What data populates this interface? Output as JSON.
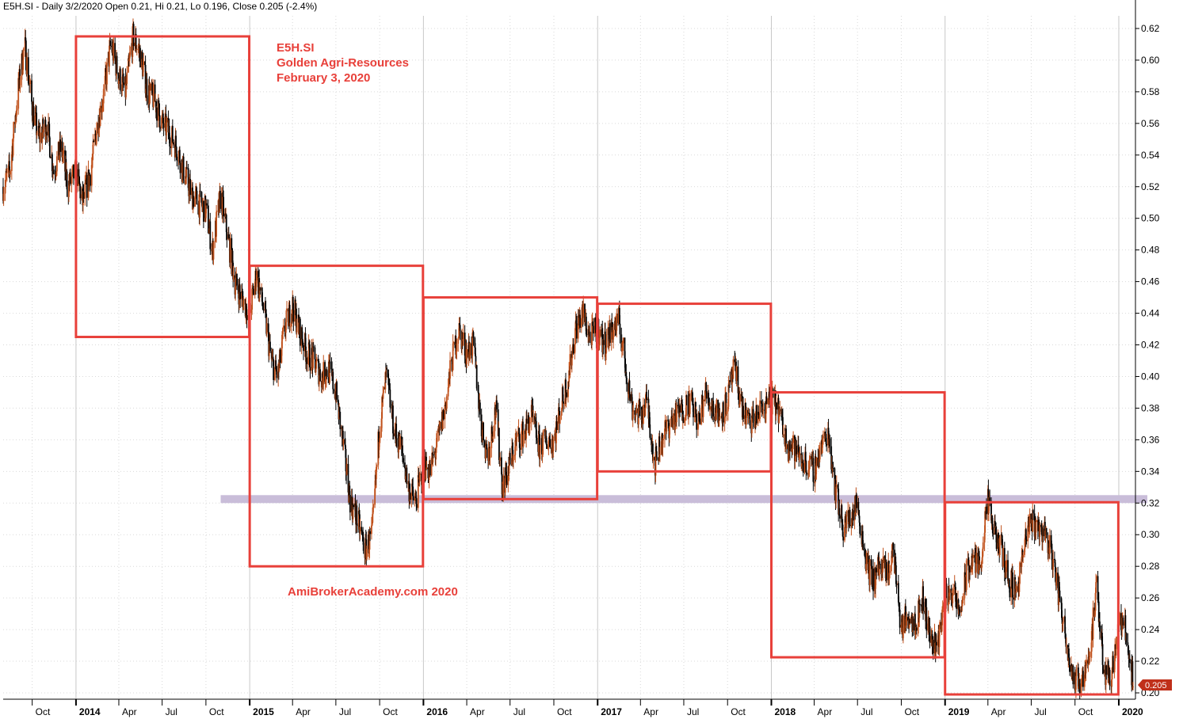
{
  "header": {
    "text": "E5H.SI - Daily 3/2/2020 Open 0.21, Hi 0.21, Lo 0.196, Close 0.205 (-2.4%)"
  },
  "annotations": {
    "ticker": "E5H.SI",
    "company": "Golden Agri-Resources",
    "date": "February 3, 2020",
    "watermark": "AmiBrokerAcademy.com   2020"
  },
  "last_price_label": "0.205",
  "colors": {
    "box": "#e8403a",
    "support_band": "#c9bdd9",
    "candle_dark": "#000000",
    "candle_light": "#c0501a",
    "price_tag": "#c0301a",
    "grid": "#d9d9d9"
  },
  "chart_data": {
    "type": "candlestick",
    "title": "",
    "xlabel": "",
    "ylabel": "",
    "ylim": [
      0.196,
      0.628
    ],
    "y_ticks": [
      0.2,
      0.22,
      0.24,
      0.26,
      0.28,
      0.3,
      0.32,
      0.34,
      0.36,
      0.38,
      0.4,
      0.42,
      0.44,
      0.46,
      0.48,
      0.5,
      0.52,
      0.54,
      0.56,
      0.58,
      0.6,
      0.62
    ],
    "x_ticks": [
      {
        "label": "Oct",
        "date": "2013-10-01",
        "bold": false
      },
      {
        "label": "2014",
        "date": "2014-01-01",
        "bold": true
      },
      {
        "label": "Apr",
        "date": "2014-04-01",
        "bold": false
      },
      {
        "label": "Jul",
        "date": "2014-07-01",
        "bold": false
      },
      {
        "label": "Oct",
        "date": "2014-10-01",
        "bold": false
      },
      {
        "label": "2015",
        "date": "2015-01-01",
        "bold": true
      },
      {
        "label": "Apr",
        "date": "2015-04-01",
        "bold": false
      },
      {
        "label": "Jul",
        "date": "2015-07-01",
        "bold": false
      },
      {
        "label": "Oct",
        "date": "2015-10-01",
        "bold": false
      },
      {
        "label": "2016",
        "date": "2016-01-01",
        "bold": true
      },
      {
        "label": "Apr",
        "date": "2016-04-01",
        "bold": false
      },
      {
        "label": "Jul",
        "date": "2016-07-01",
        "bold": false
      },
      {
        "label": "Oct",
        "date": "2016-10-01",
        "bold": false
      },
      {
        "label": "2017",
        "date": "2017-01-01",
        "bold": true
      },
      {
        "label": "Apr",
        "date": "2017-04-01",
        "bold": false
      },
      {
        "label": "Jul",
        "date": "2017-07-01",
        "bold": false
      },
      {
        "label": "Oct",
        "date": "2017-10-01",
        "bold": false
      },
      {
        "label": "2018",
        "date": "2018-01-01",
        "bold": true
      },
      {
        "label": "Apr",
        "date": "2018-04-01",
        "bold": false
      },
      {
        "label": "Jul",
        "date": "2018-07-01",
        "bold": false
      },
      {
        "label": "Oct",
        "date": "2018-10-01",
        "bold": false
      },
      {
        "label": "2019",
        "date": "2019-01-01",
        "bold": true
      },
      {
        "label": "Apr",
        "date": "2019-04-01",
        "bold": false
      },
      {
        "label": "Jul",
        "date": "2019-07-01",
        "bold": false
      },
      {
        "label": "Oct",
        "date": "2019-10-01",
        "bold": false
      },
      {
        "label": "2020",
        "date": "2020-01-01",
        "bold": true
      }
    ],
    "series": [
      {
        "type": "close",
        "points": [
          [
            "2013-08-01",
            0.52
          ],
          [
            "2013-08-15",
            0.53
          ],
          [
            "2013-09-01",
            0.58
          ],
          [
            "2013-09-15",
            0.61
          ],
          [
            "2013-10-01",
            0.57
          ],
          [
            "2013-10-15",
            0.55
          ],
          [
            "2013-11-01",
            0.56
          ],
          [
            "2013-11-15",
            0.53
          ],
          [
            "2013-12-01",
            0.545
          ],
          [
            "2013-12-15",
            0.52
          ],
          [
            "2014-01-01",
            0.53
          ],
          [
            "2014-01-15",
            0.51
          ],
          [
            "2014-02-01",
            0.53
          ],
          [
            "2014-02-15",
            0.56
          ],
          [
            "2014-03-01",
            0.58
          ],
          [
            "2014-03-15",
            0.61
          ],
          [
            "2014-04-01",
            0.59
          ],
          [
            "2014-04-15",
            0.58
          ],
          [
            "2014-05-01",
            0.615
          ],
          [
            "2014-05-15",
            0.605
          ],
          [
            "2014-06-01",
            0.58
          ],
          [
            "2014-06-15",
            0.575
          ],
          [
            "2014-07-01",
            0.56
          ],
          [
            "2014-07-15",
            0.555
          ],
          [
            "2014-08-01",
            0.545
          ],
          [
            "2014-08-15",
            0.53
          ],
          [
            "2014-09-01",
            0.515
          ],
          [
            "2014-09-15",
            0.51
          ],
          [
            "2014-10-01",
            0.505
          ],
          [
            "2014-10-15",
            0.48
          ],
          [
            "2014-11-01",
            0.515
          ],
          [
            "2014-11-15",
            0.49
          ],
          [
            "2014-12-01",
            0.46
          ],
          [
            "2014-12-15",
            0.45
          ],
          [
            "2015-01-01",
            0.44
          ],
          [
            "2015-01-15",
            0.465
          ],
          [
            "2015-02-01",
            0.44
          ],
          [
            "2015-02-15",
            0.41
          ],
          [
            "2015-03-01",
            0.4
          ],
          [
            "2015-03-15",
            0.43
          ],
          [
            "2015-04-01",
            0.445
          ],
          [
            "2015-04-15",
            0.43
          ],
          [
            "2015-05-01",
            0.415
          ],
          [
            "2015-05-15",
            0.41
          ],
          [
            "2015-06-01",
            0.4
          ],
          [
            "2015-06-15",
            0.405
          ],
          [
            "2015-07-01",
            0.39
          ],
          [
            "2015-07-15",
            0.36
          ],
          [
            "2015-08-01",
            0.32
          ],
          [
            "2015-08-15",
            0.31
          ],
          [
            "2015-09-01",
            0.29
          ],
          [
            "2015-09-15",
            0.3
          ],
          [
            "2015-10-01",
            0.37
          ],
          [
            "2015-10-15",
            0.4
          ],
          [
            "2015-11-01",
            0.365
          ],
          [
            "2015-11-15",
            0.355
          ],
          [
            "2015-12-01",
            0.33
          ],
          [
            "2015-12-15",
            0.32
          ],
          [
            "2016-01-01",
            0.345
          ],
          [
            "2016-01-15",
            0.34
          ],
          [
            "2016-02-01",
            0.36
          ],
          [
            "2016-02-15",
            0.38
          ],
          [
            "2016-03-01",
            0.41
          ],
          [
            "2016-03-15",
            0.43
          ],
          [
            "2016-04-01",
            0.415
          ],
          [
            "2016-04-15",
            0.42
          ],
          [
            "2016-05-01",
            0.37
          ],
          [
            "2016-05-15",
            0.35
          ],
          [
            "2016-06-01",
            0.38
          ],
          [
            "2016-06-15",
            0.33
          ],
          [
            "2016-07-01",
            0.345
          ],
          [
            "2016-07-15",
            0.36
          ],
          [
            "2016-08-01",
            0.365
          ],
          [
            "2016-08-15",
            0.375
          ],
          [
            "2016-09-01",
            0.355
          ],
          [
            "2016-09-15",
            0.36
          ],
          [
            "2016-10-01",
            0.36
          ],
          [
            "2016-10-15",
            0.38
          ],
          [
            "2016-11-01",
            0.4
          ],
          [
            "2016-11-15",
            0.43
          ],
          [
            "2016-12-01",
            0.44
          ],
          [
            "2016-12-15",
            0.425
          ],
          [
            "2017-01-01",
            0.43
          ],
          [
            "2017-01-15",
            0.42
          ],
          [
            "2017-02-01",
            0.43
          ],
          [
            "2017-02-15",
            0.435
          ],
          [
            "2017-03-01",
            0.405
          ],
          [
            "2017-03-15",
            0.38
          ],
          [
            "2017-04-01",
            0.375
          ],
          [
            "2017-04-15",
            0.385
          ],
          [
            "2017-05-01",
            0.345
          ],
          [
            "2017-05-15",
            0.36
          ],
          [
            "2017-06-01",
            0.37
          ],
          [
            "2017-06-15",
            0.375
          ],
          [
            "2017-07-01",
            0.38
          ],
          [
            "2017-07-15",
            0.385
          ],
          [
            "2017-08-01",
            0.37
          ],
          [
            "2017-08-15",
            0.39
          ],
          [
            "2017-09-01",
            0.38
          ],
          [
            "2017-09-15",
            0.375
          ],
          [
            "2017-10-01",
            0.385
          ],
          [
            "2017-10-15",
            0.405
          ],
          [
            "2017-11-01",
            0.38
          ],
          [
            "2017-11-15",
            0.37
          ],
          [
            "2017-12-01",
            0.375
          ],
          [
            "2017-12-15",
            0.38
          ],
          [
            "2018-01-01",
            0.385
          ],
          [
            "2018-01-15",
            0.38
          ],
          [
            "2018-02-01",
            0.36
          ],
          [
            "2018-02-15",
            0.355
          ],
          [
            "2018-03-01",
            0.35
          ],
          [
            "2018-03-15",
            0.345
          ],
          [
            "2018-04-01",
            0.34
          ],
          [
            "2018-04-15",
            0.355
          ],
          [
            "2018-05-01",
            0.365
          ],
          [
            "2018-05-15",
            0.33
          ],
          [
            "2018-06-01",
            0.305
          ],
          [
            "2018-06-15",
            0.31
          ],
          [
            "2018-07-01",
            0.32
          ],
          [
            "2018-07-15",
            0.29
          ],
          [
            "2018-08-01",
            0.27
          ],
          [
            "2018-08-15",
            0.28
          ],
          [
            "2018-09-01",
            0.275
          ],
          [
            "2018-09-15",
            0.29
          ],
          [
            "2018-10-01",
            0.24
          ],
          [
            "2018-10-15",
            0.25
          ],
          [
            "2018-11-01",
            0.245
          ],
          [
            "2018-11-15",
            0.26
          ],
          [
            "2018-12-01",
            0.235
          ],
          [
            "2018-12-15",
            0.23
          ],
          [
            "2019-01-01",
            0.26
          ],
          [
            "2019-01-15",
            0.265
          ],
          [
            "2019-02-01",
            0.25
          ],
          [
            "2019-02-15",
            0.275
          ],
          [
            "2019-03-01",
            0.285
          ],
          [
            "2019-03-15",
            0.28
          ],
          [
            "2019-04-01",
            0.32
          ],
          [
            "2019-04-15",
            0.3
          ],
          [
            "2019-05-01",
            0.29
          ],
          [
            "2019-05-15",
            0.27
          ],
          [
            "2019-06-01",
            0.265
          ],
          [
            "2019-06-15",
            0.29
          ],
          [
            "2019-07-01",
            0.31
          ],
          [
            "2019-07-15",
            0.305
          ],
          [
            "2019-08-01",
            0.3
          ],
          [
            "2019-08-15",
            0.285
          ],
          [
            "2019-09-01",
            0.255
          ],
          [
            "2019-09-15",
            0.23
          ],
          [
            "2019-10-01",
            0.205
          ],
          [
            "2019-10-15",
            0.21
          ],
          [
            "2019-11-01",
            0.225
          ],
          [
            "2019-11-15",
            0.265
          ],
          [
            "2019-12-01",
            0.215
          ],
          [
            "2019-12-15",
            0.21
          ],
          [
            "2020-01-01",
            0.245
          ],
          [
            "2020-01-15",
            0.24
          ],
          [
            "2020-02-01",
            0.205
          ]
        ]
      }
    ],
    "boxes": [
      {
        "start": "2014-01-01",
        "end": "2014-12-31",
        "low": 0.425,
        "high": 0.615
      },
      {
        "start": "2015-01-01",
        "end": "2015-12-31",
        "low": 0.28,
        "high": 0.47
      },
      {
        "start": "2016-01-01",
        "end": "2016-12-31",
        "low": 0.3225,
        "high": 0.45
      },
      {
        "start": "2017-01-01",
        "end": "2017-12-31",
        "low": 0.34,
        "high": 0.446
      },
      {
        "start": "2018-01-01",
        "end": "2018-12-31",
        "low": 0.2225,
        "high": 0.39
      },
      {
        "start": "2019-01-01",
        "end": "2019-12-31",
        "low": 0.199,
        "high": 0.3205
      }
    ],
    "support_band": {
      "start": "2014-11-01",
      "end": "2020-03-01",
      "low": 0.32,
      "high": 0.325
    },
    "last_close": 0.205
  }
}
